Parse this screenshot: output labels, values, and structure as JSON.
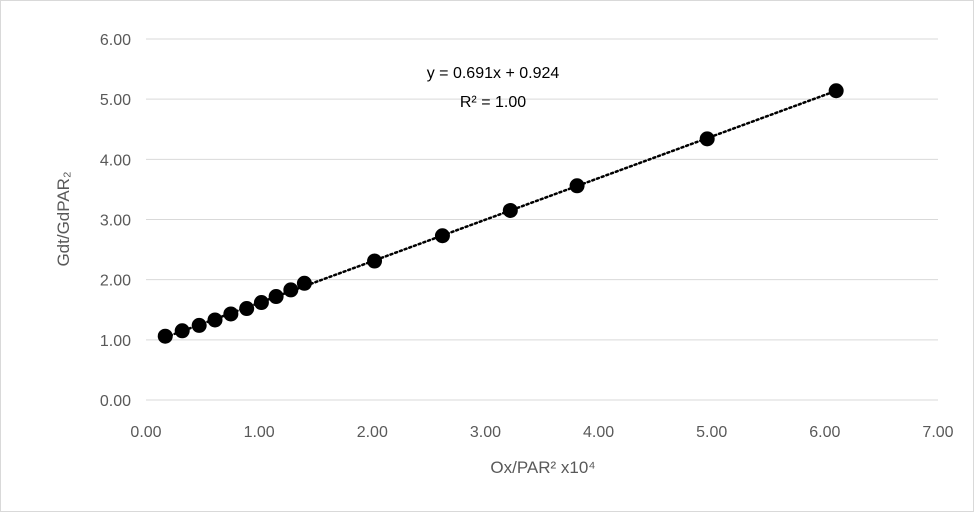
{
  "chart_data": {
    "type": "scatter",
    "title": "",
    "xlabel": "Ox/PAR² x10⁴",
    "ylabel": "Gdt/GdPAR₂",
    "xlim": [
      0,
      7
    ],
    "ylim": [
      0,
      6
    ],
    "x_ticks": [
      "0.00",
      "1.00",
      "2.00",
      "3.00",
      "4.00",
      "5.00",
      "6.00",
      "7.00"
    ],
    "y_ticks": [
      "0.00",
      "1.00",
      "2.00",
      "3.00",
      "4.00",
      "5.00",
      "6.00"
    ],
    "grid": "horizontal",
    "legend": "none",
    "series": [
      {
        "points": [
          {
            "x": 0.17,
            "y": 1.06
          },
          {
            "x": 0.32,
            "y": 1.15
          },
          {
            "x": 0.47,
            "y": 1.24
          },
          {
            "x": 0.61,
            "y": 1.33
          },
          {
            "x": 0.75,
            "y": 1.43
          },
          {
            "x": 0.89,
            "y": 1.52
          },
          {
            "x": 1.02,
            "y": 1.62
          },
          {
            "x": 1.15,
            "y": 1.72
          },
          {
            "x": 1.28,
            "y": 1.83
          },
          {
            "x": 1.4,
            "y": 1.94
          },
          {
            "x": 2.02,
            "y": 2.31
          },
          {
            "x": 2.62,
            "y": 2.73
          },
          {
            "x": 3.22,
            "y": 3.15
          },
          {
            "x": 3.81,
            "y": 3.56
          },
          {
            "x": 4.96,
            "y": 4.34
          },
          {
            "x": 6.1,
            "y": 5.14
          }
        ],
        "color": "#000000"
      }
    ],
    "trendline": {
      "type": "linear",
      "slope": 0.691,
      "intercept": 0.924,
      "x_range": [
        0.17,
        6.1
      ],
      "style": "dotted",
      "color": "#000000"
    },
    "annotations": {
      "equation": "y = 0.691x + 0.924",
      "r_squared": "R² = 1.00"
    },
    "colors": {
      "gridline": "#d9d9d9",
      "tick_text": "#595959",
      "marker": "#000000"
    }
  }
}
